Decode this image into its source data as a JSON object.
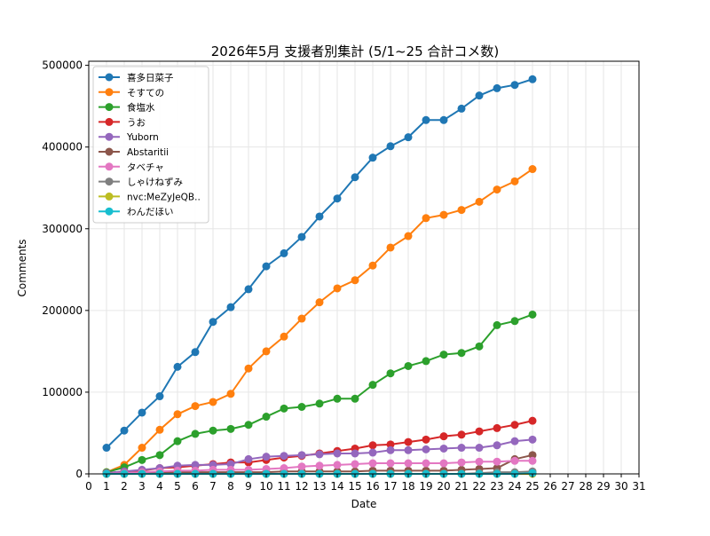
{
  "chart_data": {
    "type": "line",
    "title": "2026年5月 支援者別集計 (5/1~25 合計コメ数)",
    "xlabel": "Date",
    "ylabel": "Comments",
    "xlim": [
      0,
      31
    ],
    "ylim": [
      0,
      505000
    ],
    "x_ticks": [
      0,
      1,
      2,
      3,
      4,
      5,
      6,
      7,
      8,
      9,
      10,
      11,
      12,
      13,
      14,
      15,
      16,
      17,
      18,
      19,
      20,
      21,
      22,
      23,
      24,
      25,
      26,
      27,
      28,
      29,
      30,
      31
    ],
    "y_ticks": [
      0,
      100000,
      200000,
      300000,
      400000,
      500000
    ],
    "grid": true,
    "legend_position": "top-left",
    "x": [
      1,
      2,
      3,
      4,
      5,
      6,
      7,
      8,
      9,
      10,
      11,
      12,
      13,
      14,
      15,
      16,
      17,
      18,
      19,
      20,
      21,
      22,
      23,
      24,
      25
    ],
    "series": [
      {
        "name": "喜多日菜子",
        "color": "#1f77b4",
        "values": [
          32000,
          53000,
          75000,
          95000,
          131000,
          149000,
          186000,
          204000,
          226000,
          254000,
          270000,
          290000,
          315000,
          337000,
          363000,
          387000,
          401000,
          412000,
          433000,
          433000,
          447000,
          463000,
          472000,
          476000,
          483000
        ]
      },
      {
        "name": "そすての",
        "color": "#ff7f0e",
        "values": [
          2000,
          11000,
          32000,
          54000,
          73000,
          83000,
          88000,
          98000,
          129000,
          150000,
          168000,
          190000,
          210000,
          227000,
          237000,
          255000,
          277000,
          291000,
          313000,
          317000,
          323000,
          333000,
          348000,
          358000,
          373000
        ]
      },
      {
        "name": "食塩水",
        "color": "#2ca02c",
        "values": [
          2000,
          8000,
          17000,
          23000,
          40000,
          49000,
          53000,
          55000,
          60000,
          70000,
          80000,
          82000,
          86000,
          92000,
          92000,
          109000,
          123000,
          132000,
          138000,
          146000,
          148000,
          156000,
          182000,
          187000,
          195000
        ]
      },
      {
        "name": "うお",
        "color": "#d62728",
        "values": [
          1000,
          3000,
          4000,
          7000,
          8000,
          10000,
          12000,
          14000,
          14000,
          17000,
          20000,
          22000,
          25000,
          28000,
          31000,
          35000,
          36000,
          39000,
          42000,
          46000,
          48000,
          52000,
          56000,
          60000,
          65000
        ]
      },
      {
        "name": "Yuborn",
        "color": "#9467bd",
        "values": [
          1000,
          3000,
          5000,
          7000,
          10000,
          11000,
          11000,
          12000,
          18000,
          21000,
          22000,
          23000,
          24000,
          25000,
          25000,
          26000,
          29000,
          29000,
          30000,
          31000,
          32000,
          32000,
          35000,
          40000,
          42000
        ]
      },
      {
        "name": "Abstaritii",
        "color": "#8c564b",
        "values": [
          0,
          1000,
          2000,
          2000,
          2000,
          2000,
          2000,
          2000,
          2000,
          2000,
          3000,
          3000,
          3000,
          3000,
          3000,
          4000,
          4000,
          4000,
          4000,
          4000,
          5000,
          6000,
          7000,
          18000,
          23000
        ]
      },
      {
        "name": "タベチャ",
        "color": "#e377c2",
        "values": [
          0,
          1000,
          2000,
          3000,
          4000,
          4000,
          5000,
          5000,
          5000,
          6000,
          7000,
          9000,
          10000,
          11000,
          12000,
          13000,
          13000,
          13000,
          13000,
          13000,
          14000,
          15000,
          15000,
          16000,
          16000
        ]
      },
      {
        "name": "しゃけねずみ",
        "color": "#7f7f7f",
        "values": [
          0,
          0,
          0,
          0,
          0,
          0,
          0,
          0,
          0,
          0,
          0,
          0,
          0,
          0,
          0,
          0,
          0,
          0,
          0,
          0,
          0,
          1000,
          2000,
          2000,
          3000
        ]
      },
      {
        "name": "nvc:MeZyJeQB..",
        "color": "#bcbd22",
        "values": [
          0,
          0,
          0,
          0,
          0,
          0,
          0,
          0,
          0,
          0,
          0,
          0,
          0,
          0,
          0,
          0,
          0,
          0,
          0,
          0,
          0,
          0,
          0,
          0,
          0
        ]
      },
      {
        "name": "わんだほい",
        "color": "#17becf",
        "values": [
          0,
          0,
          0,
          0,
          0,
          0,
          0,
          0,
          0,
          0,
          0,
          0,
          0,
          0,
          0,
          0,
          0,
          0,
          0,
          0,
          0,
          0,
          0,
          0,
          1000
        ]
      }
    ]
  }
}
